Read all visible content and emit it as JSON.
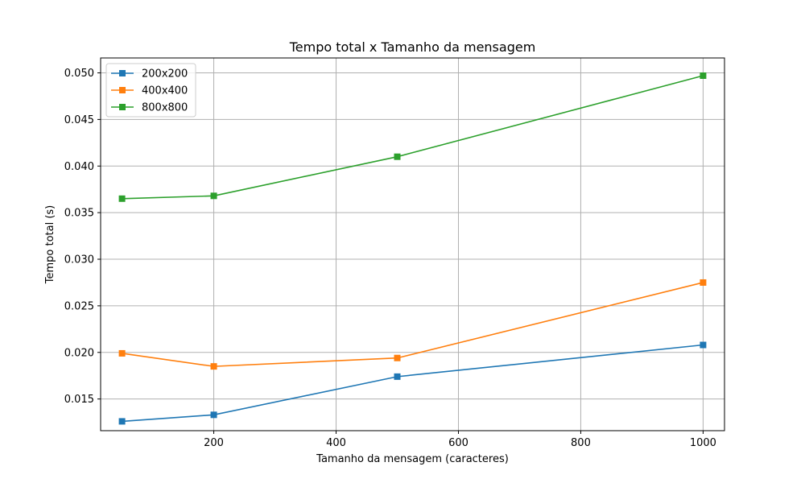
{
  "chart_data": {
    "type": "line",
    "title": "Tempo total x Tamanho da mensagem",
    "xlabel": "Tamanho da mensagem (caracteres)",
    "ylabel": "Tempo total (s)",
    "x": [
      50,
      200,
      500,
      1000
    ],
    "xlim": [
      15,
      1035
    ],
    "ylim": [
      0.0116,
      0.0516
    ],
    "xticks": [
      200,
      400,
      600,
      800,
      1000
    ],
    "xtick_labels": [
      "200",
      "400",
      "600",
      "800",
      "1000"
    ],
    "yticks": [
      0.015,
      0.02,
      0.025,
      0.03,
      0.035,
      0.04,
      0.045,
      0.05
    ],
    "ytick_labels": [
      "0.015",
      "0.020",
      "0.025",
      "0.030",
      "0.035",
      "0.040",
      "0.045",
      "0.050"
    ],
    "grid": true,
    "legend_position": "top-left",
    "marker": "square",
    "series": [
      {
        "name": "200x200",
        "color": "#1f77b4",
        "values": [
          0.0126,
          0.0133,
          0.0174,
          0.0208
        ]
      },
      {
        "name": "400x400",
        "color": "#ff7f0e",
        "values": [
          0.0199,
          0.0185,
          0.0194,
          0.0275
        ]
      },
      {
        "name": "800x800",
        "color": "#2ca02c",
        "values": [
          0.0365,
          0.0368,
          0.041,
          0.0497
        ]
      }
    ]
  }
}
